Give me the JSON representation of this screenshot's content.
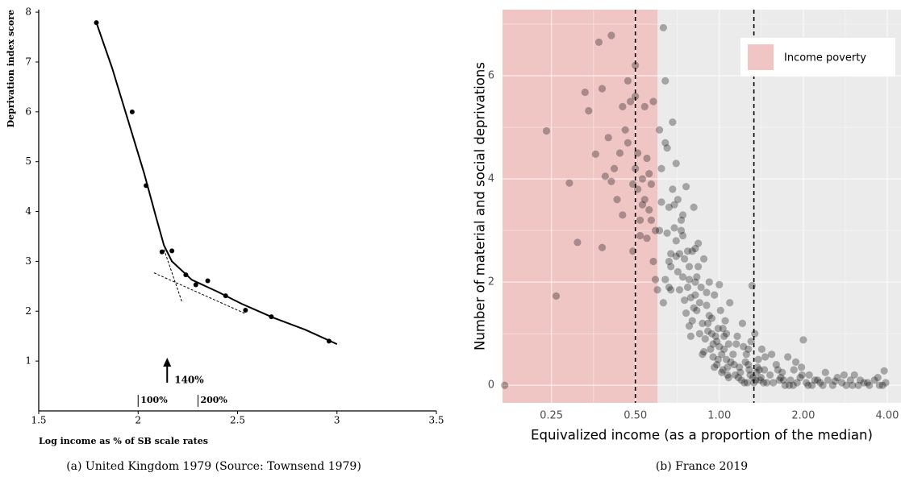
{
  "chart_data": [
    {
      "type": "scatter",
      "caption": "(a) United Kingdom 1979 (Source: Townsend 1979)",
      "xlabel": "Log income as % of SB scale rates",
      "ylabel": "Deprivation index score",
      "xlim": [
        1.5,
        3.5
      ],
      "xticks": [
        1.5,
        2,
        2.5,
        3,
        3.5
      ],
      "ylim": [
        0,
        8.05
      ],
      "yticks": [
        1,
        2,
        3,
        4,
        5,
        6,
        7,
        8
      ],
      "grid": false,
      "series": [
        {
          "mode": "markers",
          "color": "#000000",
          "x": [
            1.79,
            1.97,
            2.04,
            2.12,
            2.17,
            2.24,
            2.29,
            2.35,
            2.44,
            2.54,
            2.67,
            2.96
          ],
          "values": [
            7.79,
            6.0,
            4.52,
            3.19,
            3.21,
            2.73,
            2.53,
            2.61,
            2.31,
            2.02,
            1.89,
            1.4
          ]
        },
        {
          "mode": "line",
          "color": "#000000",
          "x": [
            1.79,
            1.87,
            1.95,
            2.03,
            2.09,
            2.13,
            2.17,
            2.27,
            2.4,
            2.52,
            2.68,
            2.84,
            3.0
          ],
          "values": [
            7.79,
            6.87,
            5.82,
            4.77,
            3.89,
            3.32,
            3.0,
            2.63,
            2.39,
            2.15,
            1.87,
            1.63,
            1.34
          ]
        },
        {
          "mode": "line",
          "dash": true,
          "color": "#000000",
          "x": [
            2.08,
            2.54
          ],
          "values": [
            2.77,
            1.95
          ]
        },
        {
          "mode": "line",
          "dash": true,
          "color": "#000000",
          "x": [
            2.13,
            2.22
          ],
          "values": [
            3.24,
            2.19
          ]
        }
      ],
      "annotations": [
        {
          "text": "140%",
          "x": 2.146,
          "kind": "arrow"
        },
        {
          "text": "100%",
          "x": 2,
          "kind": "tick"
        },
        {
          "text": "200%",
          "x": 2.301,
          "kind": "tick"
        }
      ]
    },
    {
      "type": "scatter",
      "caption": "(b) France 2019",
      "xlabel": "Equivalized income (as a proportion of the median)",
      "ylabel": "Number of material and social deprivations",
      "xscale": "log",
      "xlim": [
        0.167,
        4.48
      ],
      "xticks": [
        {
          "value": 0.25,
          "label": "0.25"
        },
        {
          "value": 0.5,
          "label": "0.50"
        },
        {
          "value": 1,
          "label": "1.00"
        },
        {
          "value": 2,
          "label": "2.00"
        },
        {
          "value": 4,
          "label": "4.00"
        }
      ],
      "xminor": [
        0.354,
        0.707,
        1.414,
        2.828
      ],
      "ylim": [
        -0.34,
        7.28
      ],
      "yticks": [
        0,
        2,
        4,
        6
      ],
      "yminor": [
        1,
        3,
        5,
        7
      ],
      "grid": true,
      "panel_background": "#ebebeb",
      "legend": "top-right",
      "shaded_regions": [
        {
          "name": "Income poverty",
          "color": "#f0c6c4",
          "xmax": 0.6
        }
      ],
      "vlines": [
        0.5,
        1.33
      ],
      "series": [
        {
          "mode": "markers",
          "color": "#000000",
          "alpha": 0.3,
          "x": [
            0.17,
            0.24,
            0.26,
            0.29,
            0.31,
            0.33,
            0.34,
            0.36,
            0.37,
            0.38,
            0.38,
            0.39,
            0.4,
            0.41,
            0.41,
            0.42,
            0.43,
            0.44,
            0.45,
            0.45,
            0.46,
            0.47,
            0.48,
            0.47,
            0.49,
            0.5,
            0.5,
            0.49,
            0.51,
            0.52,
            0.53,
            0.52,
            0.54,
            0.55,
            0.54,
            0.56,
            0.57,
            0.58,
            0.58,
            0.59,
            0.5,
            0.51,
            0.53,
            0.55,
            0.56,
            0.57,
            0.59,
            0.6,
            0.61,
            0.62,
            0.63,
            0.64,
            0.65,
            0.66,
            0.67,
            0.68,
            0.69,
            0.7,
            0.62,
            0.64,
            0.66,
            0.68,
            0.7,
            0.63,
            0.65,
            0.67,
            0.69,
            0.61,
            0.64,
            0.67,
            0.7,
            0.66,
            0.71,
            0.72,
            0.73,
            0.74,
            0.75,
            0.76,
            0.77,
            0.78,
            0.79,
            0.8,
            0.81,
            0.82,
            0.83,
            0.84,
            0.85,
            0.72,
            0.74,
            0.76,
            0.78,
            0.8,
            0.82,
            0.84,
            0.71,
            0.73,
            0.75,
            0.77,
            0.79,
            0.81,
            0.83,
            0.85,
            0.74,
            0.78,
            0.82,
            0.86,
            0.87,
            0.88,
            0.89,
            0.9,
            0.91,
            0.92,
            0.93,
            0.94,
            0.95,
            0.96,
            0.97,
            0.98,
            0.99,
            1.0,
            1.01,
            1.02,
            1.03,
            1.04,
            1.05,
            1.06,
            1.07,
            1.08,
            1.09,
            1.1,
            0.88,
            0.9,
            0.92,
            0.94,
            0.96,
            0.98,
            1.0,
            1.02,
            1.04,
            1.06,
            1.08,
            0.87,
            0.91,
            0.95,
            0.99,
            1.03,
            1.07,
            1.12,
            1.14,
            1.16,
            1.18,
            1.2,
            1.22,
            1.24,
            1.26,
            1.28,
            1.3,
            1.32,
            1.34,
            1.36,
            1.38,
            1.4,
            1.42,
            1.45,
            1.48,
            1.13,
            1.17,
            1.21,
            1.25,
            1.29,
            1.33,
            1.37,
            1.41,
            1.46,
            1.15,
            1.19,
            1.23,
            1.27,
            1.31,
            1.35,
            1.39,
            1.44,
            1.27,
            1.52,
            1.56,
            1.6,
            1.64,
            1.68,
            1.72,
            1.76,
            1.8,
            1.85,
            1.9,
            1.95,
            2.0,
            2.05,
            2.1,
            2.15,
            2.2,
            2.3,
            2.4,
            1.54,
            1.62,
            1.7,
            1.78,
            1.88,
            1.98,
            2.08,
            2.25,
            1.66,
            1.84,
            1.97,
            2.35,
            2.45,
            2.55,
            2.65,
            2.75,
            2.85,
            2.95,
            3.05,
            3.15,
            3.3,
            3.45,
            3.6,
            3.75,
            3.9,
            2.6,
            2.8,
            3.0,
            3.2,
            3.4,
            3.7,
            3.85,
            3.95
          ],
          "values": [
            0,
            4.93,
            1.73,
            3.92,
            2.77,
            5.68,
            5.32,
            4.48,
            6.65,
            2.67,
            5.75,
            4.05,
            4.8,
            6.78,
            3.95,
            4.2,
            3.6,
            4.5,
            3.3,
            5.4,
            4.95,
            5.9,
            5.5,
            4.7,
            3.9,
            6.2,
            5.6,
            2.6,
            4.5,
            3.2,
            4.0,
            2.9,
            3.6,
            4.4,
            5.4,
            3.4,
            3.9,
            5.5,
            2.4,
            3.0,
            4.2,
            3.8,
            3.5,
            2.85,
            4.1,
            3.2,
            2.05,
            1.85,
            4.95,
            3.55,
            6.93,
            5.9,
            4.6,
            3.45,
            2.3,
            5.1,
            3.05,
            2.5,
            4.2,
            2.05,
            1.9,
            3.8,
            4.3,
            1.6,
            2.95,
            2.55,
            3.5,
            3.0,
            4.7,
            1.85,
            2.8,
            2.4,
            3.6,
            2.55,
            3.2,
            2.1,
            2.45,
            3.85,
            1.9,
            2.3,
            1.7,
            2.6,
            3.45,
            2.0,
            1.45,
            2.75,
            1.6,
            1.85,
            2.9,
            1.4,
            2.05,
            1.25,
            1.75,
            2.3,
            2.2,
            3.0,
            1.65,
            2.6,
            0.95,
            1.5,
            2.1,
            1.0,
            3.3,
            1.15,
            2.65,
            1.9,
            1.2,
            2.45,
            0.9,
            1.55,
            1.05,
            2.0,
            0.7,
            1.3,
            0.55,
            1.75,
            0.95,
            0.4,
            1.1,
            0.75,
            1.45,
            0.6,
            0.3,
            0.95,
            1.25,
            0.5,
            0.2,
            0.8,
            1.6,
            0.45,
            0.65,
            1.8,
            1.35,
            1.0,
            0.35,
            0.85,
            1.95,
            0.25,
            0.7,
            1.0,
            0.15,
            0.6,
            1.2,
            0.8,
            0.5,
            1.1,
            0.35,
            0.6,
            0.2,
            0.95,
            0.35,
            0.1,
            0.75,
            0.45,
            0.05,
            0.3,
            0.85,
            0.15,
            1.0,
            0.25,
            0.5,
            0.1,
            0.7,
            0.3,
            0.05,
            0.4,
            0.15,
            1.2,
            0.6,
            0.2,
            0.05,
            0.35,
            0.15,
            0.55,
            0.8,
            0.25,
            0.05,
            0.4,
            1.93,
            0.1,
            0.3,
            0.05,
            0.7,
            0.2,
            0.05,
            0.4,
            0.1,
            0.25,
            0.0,
            0.55,
            0.1,
            0.3,
            0.05,
            0.15,
            0.88,
            0.05,
            0.2,
            0.0,
            0.1,
            0.05,
            0.25,
            0.6,
            0.3,
            0.1,
            0.0,
            0.45,
            0.2,
            0.0,
            0.1,
            0.15,
            0.0,
            0.35,
            0.0,
            0.1,
            0.0,
            0.15,
            0.05,
            0.0,
            0.1,
            0.2,
            0.0,
            0.05,
            0.0,
            0.1,
            0.0,
            0.28,
            0.08,
            0.2,
            0.0,
            0.1,
            0.05,
            0.15,
            0.0,
            0.05
          ]
        }
      ]
    }
  ]
}
